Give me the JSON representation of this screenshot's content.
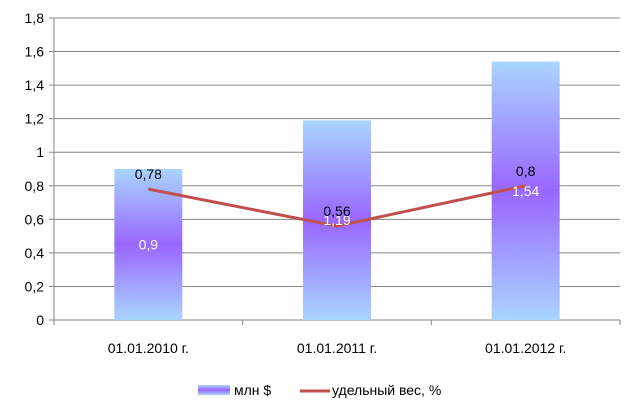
{
  "chart_data": {
    "type": "bar",
    "categories": [
      "01.01.2010 г.",
      "01.01.2011 г.",
      "01.01.2012 г."
    ],
    "ylim": [
      0,
      1.8
    ],
    "yticks": [
      "0",
      "0,2",
      "0,4",
      "0,6",
      "0,8",
      "1",
      "1,2",
      "1,4",
      "1,6",
      "1,8"
    ],
    "grid": true,
    "legend_position": "bottom",
    "series": [
      {
        "name": "млн $",
        "kind": "bar",
        "values": [
          0.9,
          1.19,
          1.54
        ],
        "labels": [
          "0,9",
          "1,19",
          "1,54"
        ],
        "color_edge": "#a9d5ff",
        "color_center": "#9966ff"
      },
      {
        "name": "удельный вес, %",
        "kind": "line",
        "values": [
          0.78,
          0.56,
          0.8
        ],
        "labels": [
          "0,78",
          "0,56",
          "0,8"
        ],
        "color": "#c0504d"
      }
    ]
  }
}
